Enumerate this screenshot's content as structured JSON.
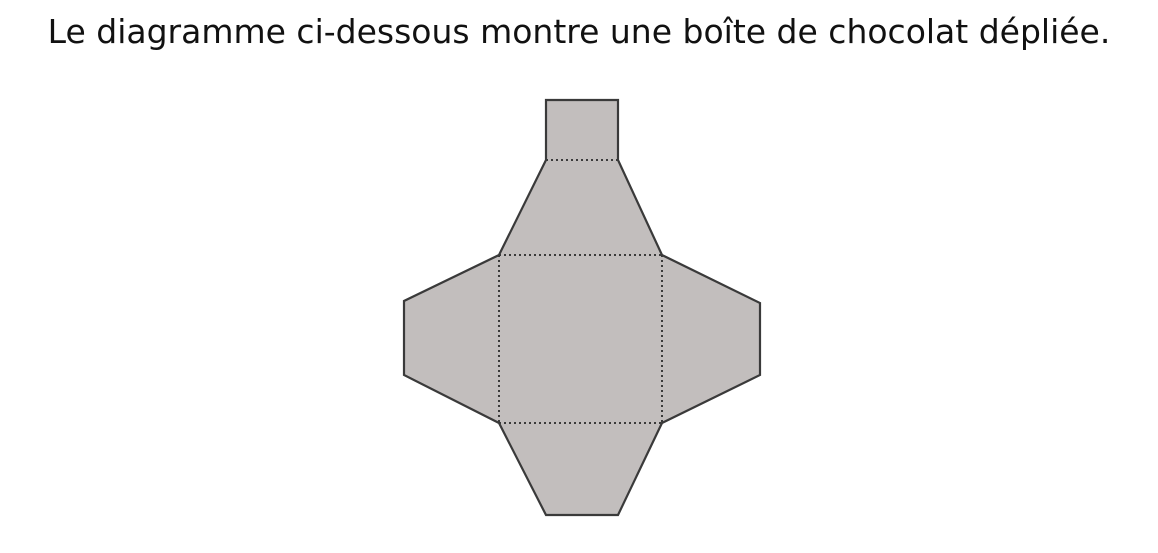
{
  "caption": "Le diagramme ci-dessous montre une boîte de chocolat dépliée.",
  "colors": {
    "fill": "#c2bebd",
    "outline": "#3a3a3a",
    "fold_line": "#3a3a3a"
  }
}
